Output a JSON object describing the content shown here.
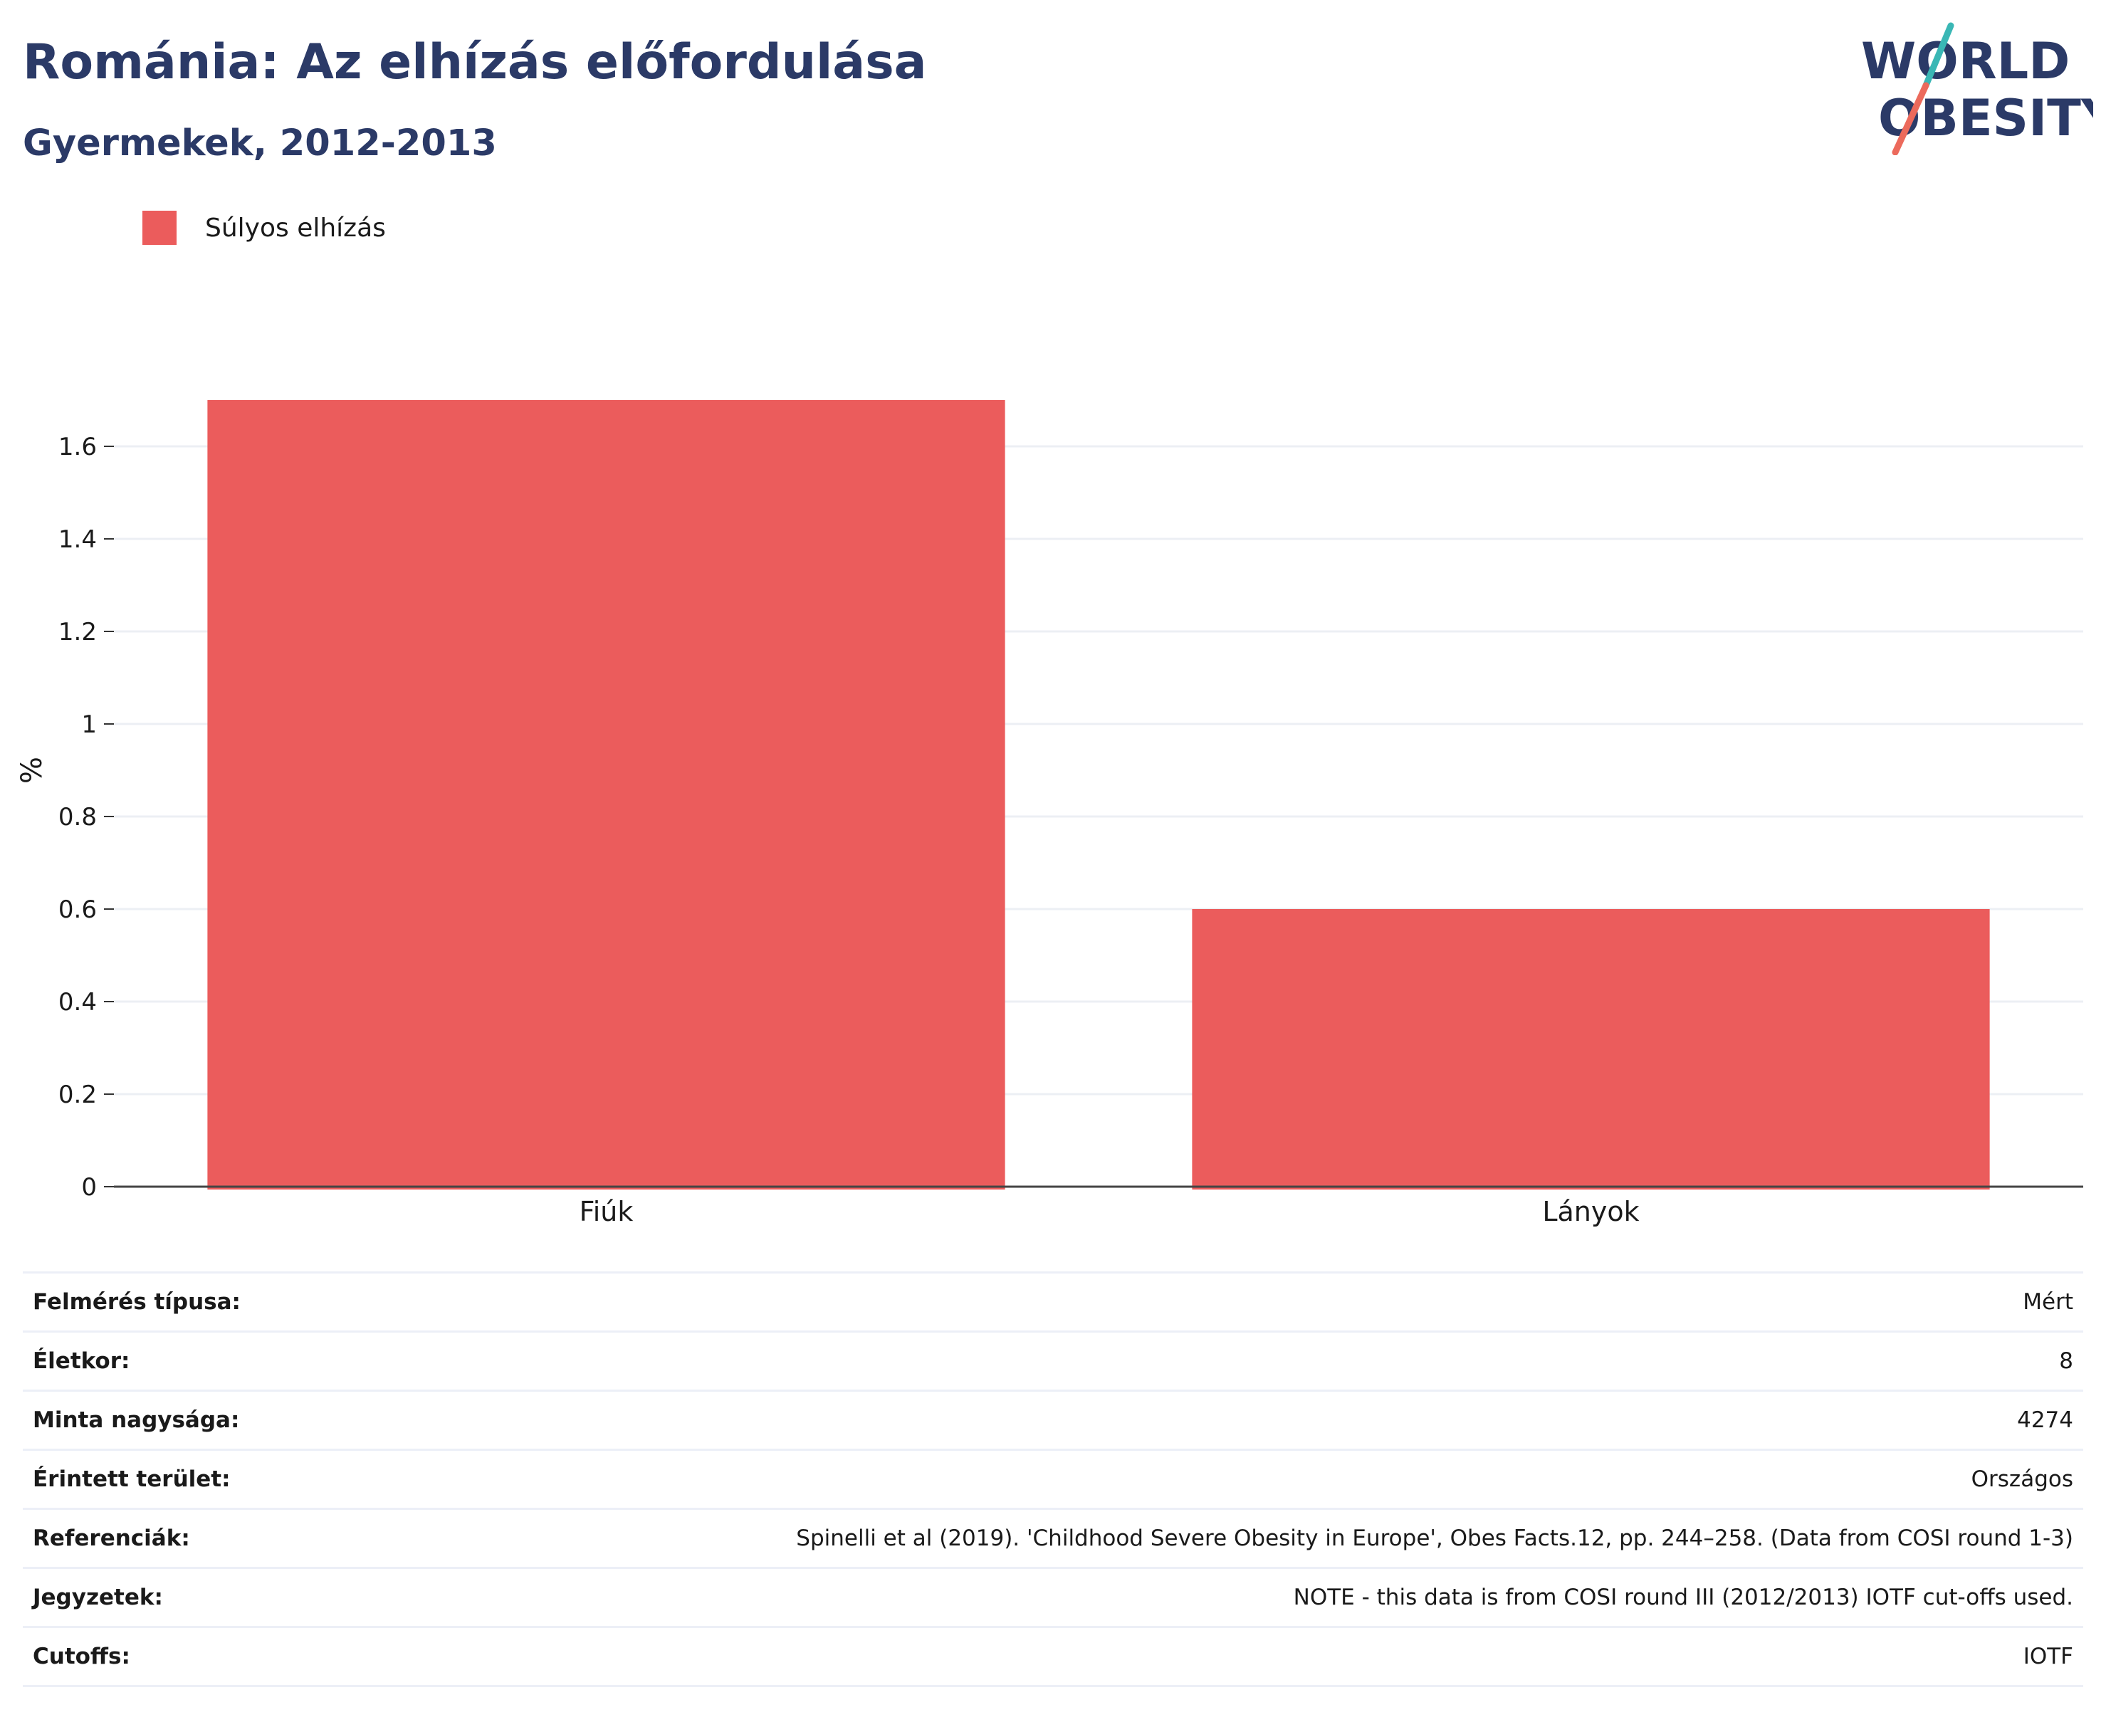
{
  "header": {
    "title": "Románia: Az elhízás előfordulása",
    "subtitle": "Gyermekek, 2012-2013"
  },
  "logo": {
    "line1": "WORLD",
    "line2": "OBESITY",
    "accent_teal": "#3ab7b5",
    "accent_coral": "#ec6a5c",
    "text_color": "#2b3a67"
  },
  "legend": {
    "items": [
      {
        "label": "Súlyos elhízás",
        "color": "#eb5c5c"
      }
    ]
  },
  "chart_data": {
    "type": "bar",
    "categories": [
      "Fiúk",
      "Lányok"
    ],
    "series": [
      {
        "name": "Súlyos elhízás",
        "values": [
          1.7,
          0.6
        ],
        "color": "#eb5c5c"
      }
    ],
    "title": "Románia: Az elhízás előfordulása",
    "subtitle": "Gyermekek, 2012-2013",
    "xlabel": "",
    "ylabel": "%",
    "ylim": [
      0,
      1.8
    ],
    "yticks": [
      0,
      0.2,
      0.4,
      0.6,
      0.8,
      1,
      1.2,
      1.4,
      1.6
    ],
    "ytick_labels": [
      "0",
      "0.2",
      "0.4",
      "0.6",
      "0.8",
      "1",
      "1.2",
      "1.4",
      "1.6"
    ],
    "grid": true,
    "legend_position": "top-left"
  },
  "meta": {
    "rows": [
      {
        "key": "Felmérés típusa:",
        "value": "Mért"
      },
      {
        "key": "Életkor:",
        "value": "8"
      },
      {
        "key": "Minta nagysága:",
        "value": "4274"
      },
      {
        "key": "Érintett terület:",
        "value": "Országos"
      },
      {
        "key": "Referenciák:",
        "value": "Spinelli et al (2019). 'Childhood Severe Obesity in Europe', Obes Facts.12, pp. 244–258. (Data from COSI round 1-3)"
      },
      {
        "key": "Jegyzetek:",
        "value": "NOTE - this data is from COSI round III (2012/2013) IOTF cut-offs used."
      },
      {
        "key": "Cutoffs:",
        "value": "IOTF"
      }
    ]
  }
}
